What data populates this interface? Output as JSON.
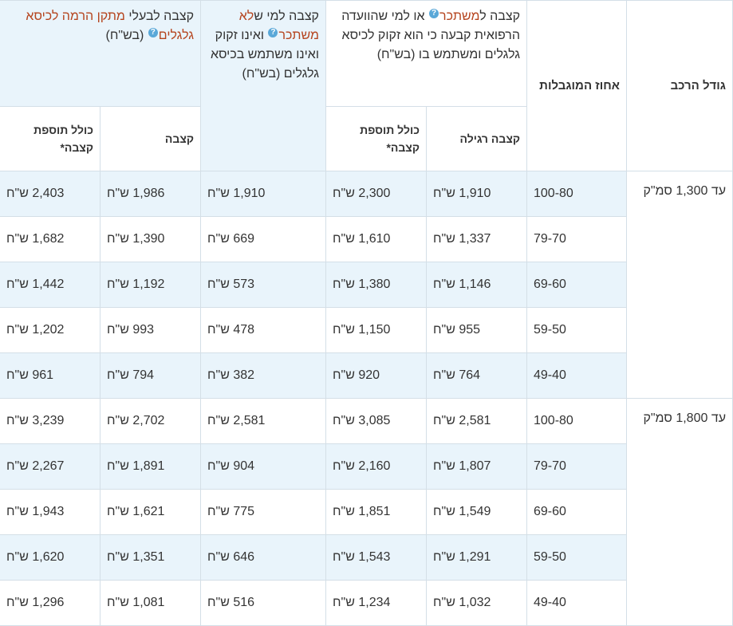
{
  "headers": {
    "vehicle_size": "גודל הרכב",
    "mobility_pct": "אחוז המוגבלות",
    "group_earner": {
      "prefix": "קצבה ל",
      "highlight": "משתכר",
      "suffix": " או למי שהוועדה הרפואית קבעה כי הוא זקוק לכיסא גלגלים ומשתמש בו (בש\"ח)"
    },
    "group_non_earner": {
      "prefix": "קצבה למי ש",
      "highlight": "לא משתכר",
      "suffix": " ואינו זקוק ואינו משתמש בכיסא גלגלים (בש\"ח)"
    },
    "group_lift": {
      "prefix": "קצבה לבעלי ",
      "highlight": "מתקן הרמה לכיסא גלגלים",
      "suffix": " (בש\"ח)"
    },
    "regular_allowance": "קצבה רגילה",
    "incl_supplement": "כולל תוספת קצבה*",
    "allowance": "קצבה",
    "incl_supplement2": "כולל תוספת קצבה*"
  },
  "groups": [
    {
      "size": "עד 1,300 סמ\"ק",
      "rows": [
        {
          "pct": "100-80",
          "regular": "1,910 ש\"ח",
          "regular_plus": "2,300 ש\"ח",
          "non_earner": "1,910 ש\"ח",
          "lift": "1,986 ש\"ח",
          "lift_plus": "2,403 ש\"ח"
        },
        {
          "pct": "79-70",
          "regular": "1,337 ש\"ח",
          "regular_plus": "1,610 ש\"ח",
          "non_earner": "669 ש\"ח",
          "lift": "1,390 ש\"ח",
          "lift_plus": "1,682 ש\"ח"
        },
        {
          "pct": "69-60",
          "regular": "1,146 ש\"ח",
          "regular_plus": "1,380 ש\"ח",
          "non_earner": "573 ש\"ח",
          "lift": "1,192 ש\"ח",
          "lift_plus": "1,442 ש\"ח"
        },
        {
          "pct": "59-50",
          "regular": "955 ש\"ח",
          "regular_plus": "1,150 ש\"ח",
          "non_earner": "478 ש\"ח",
          "lift": "993 ש\"ח",
          "lift_plus": "1,202 ש\"ח"
        },
        {
          "pct": "49-40",
          "regular": "764 ש\"ח",
          "regular_plus": "920 ש\"ח",
          "non_earner": "382 ש\"ח",
          "lift": "794 ש\"ח",
          "lift_plus": "961 ש\"ח"
        }
      ]
    },
    {
      "size": "עד 1,800 סמ\"ק",
      "rows": [
        {
          "pct": "100-80",
          "regular": "2,581 ש\"ח",
          "regular_plus": "3,085 ש\"ח",
          "non_earner": "2,581 ש\"ח",
          "lift": "2,702 ש\"ח",
          "lift_plus": "3,239 ש\"ח"
        },
        {
          "pct": "79-70",
          "regular": "1,807 ש\"ח",
          "regular_plus": "2,160 ש\"ח",
          "non_earner": "904 ש\"ח",
          "lift": "1,891 ש\"ח",
          "lift_plus": "2,267 ש\"ח"
        },
        {
          "pct": "69-60",
          "regular": "1,549 ש\"ח",
          "regular_plus": "1,851 ש\"ח",
          "non_earner": "775 ש\"ח",
          "lift": "1,621 ש\"ח",
          "lift_plus": "1,943 ש\"ח"
        },
        {
          "pct": "59-50",
          "regular": "1,291 ש\"ח",
          "regular_plus": "1,543 ש\"ח",
          "non_earner": "646 ש\"ח",
          "lift": "1,351 ש\"ח",
          "lift_plus": "1,620 ש\"ח"
        },
        {
          "pct": "49-40",
          "regular": "1,032 ש\"ח",
          "regular_plus": "1,234 ש\"ח",
          "non_earner": "516 ש\"ח",
          "lift": "1,081 ש\"ח",
          "lift_plus": "1,296 ש\"ח"
        }
      ]
    }
  ],
  "colors": {
    "header_blue": "#e9f4fb",
    "highlight": "#b5441e",
    "help_icon": "#5aa8d8",
    "border": "#d4dfe7"
  },
  "icons": {
    "help": "question-circle-icon"
  }
}
